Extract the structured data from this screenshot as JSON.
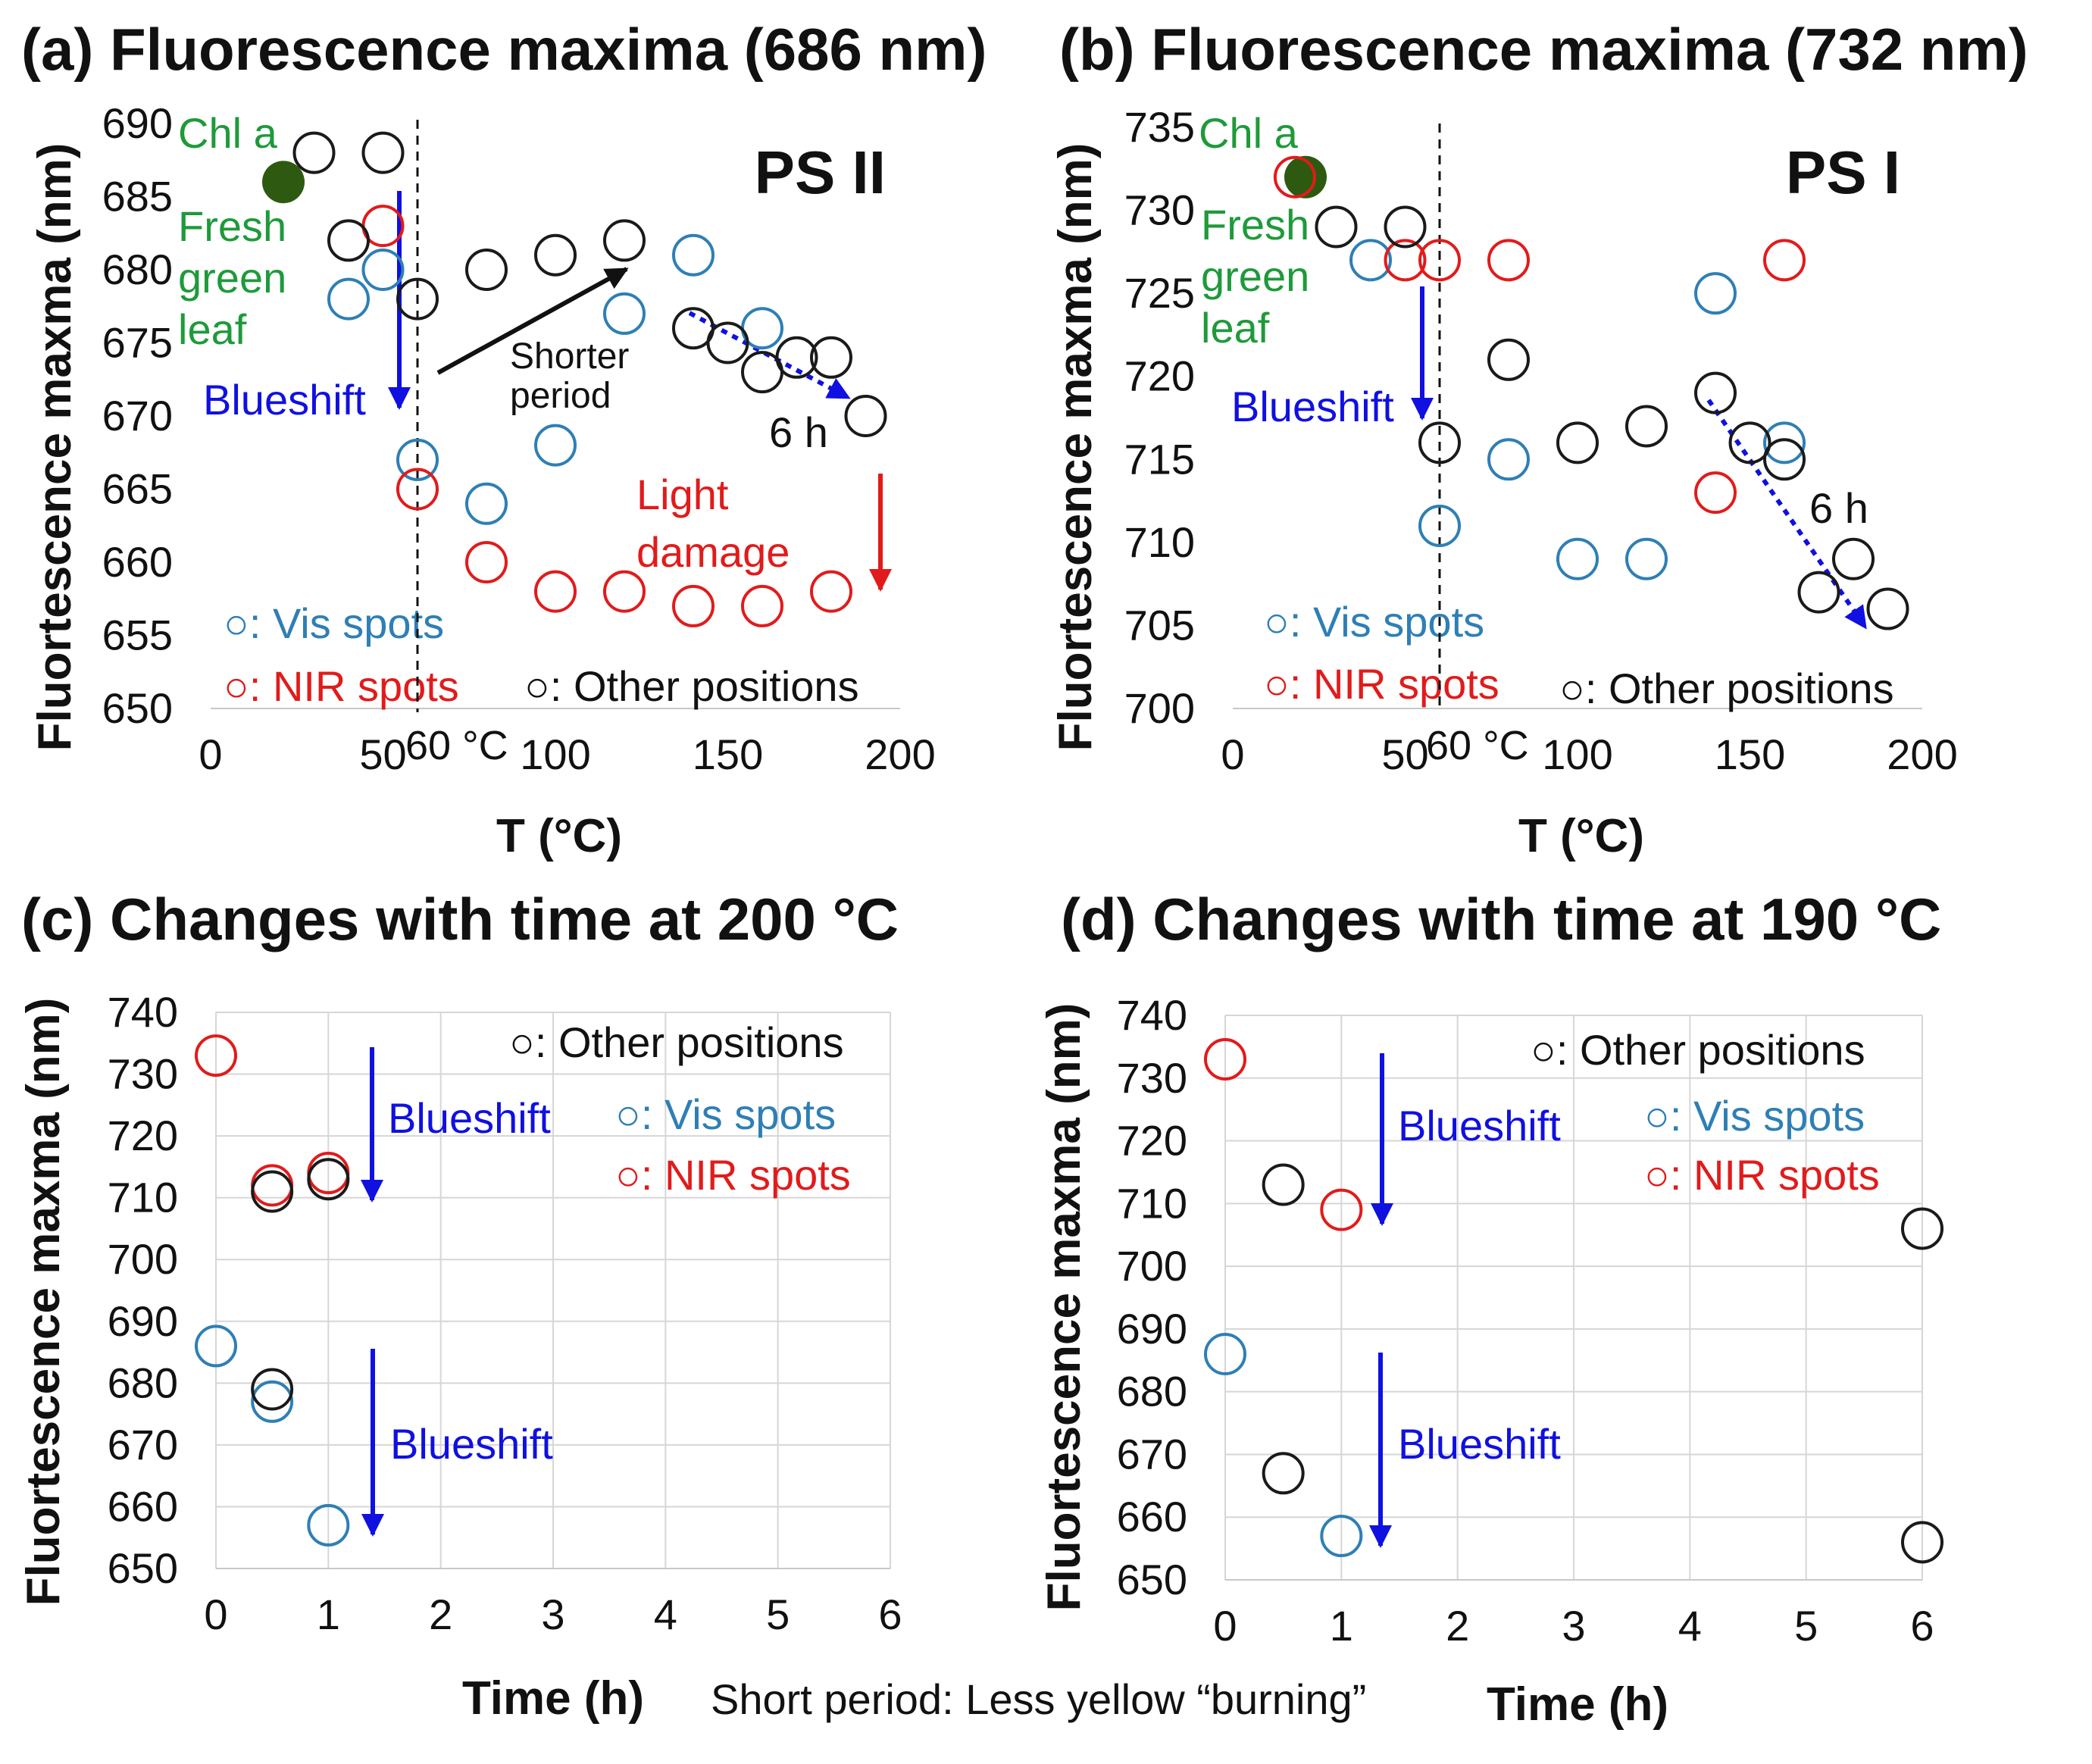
{
  "caption": "Short period: Less yellow “burning”",
  "colors": {
    "vis": "#2e7fb5",
    "nir": "#e11b1b",
    "other": "#1a1a1a",
    "blue": "#1010e0",
    "green": "#1e9a3a",
    "chl": "#2d5a10",
    "grid": "#d6d6d6"
  },
  "chart_data": [
    {
      "id": "a",
      "type": "scatter",
      "title": "(a) Fluorescence maxima (686 nm)",
      "xlabel": "T (°C)",
      "ylabel": "Fluortescence maxma (nm)",
      "xlim": [
        0,
        200
      ],
      "ylim": [
        650,
        690
      ],
      "xticks": [
        0,
        50,
        100,
        150,
        200
      ],
      "yticks": [
        650,
        655,
        660,
        665,
        670,
        675,
        680,
        685,
        690
      ],
      "grid": false,
      "panel_label": "PS II",
      "chl_a": {
        "x": 20,
        "y": 686,
        "label": "Chl a"
      },
      "fresh_leaf_label": [
        "Fresh",
        "green",
        "leaf"
      ],
      "vline": {
        "x": 60,
        "label": "60 °C"
      },
      "series": [
        {
          "name": "Vis spots",
          "key": "vis",
          "points": [
            [
              40,
              678
            ],
            [
              50,
              680
            ],
            [
              60,
              667
            ],
            [
              80,
              664
            ],
            [
              100,
              668
            ],
            [
              120,
              677
            ],
            [
              140,
              681
            ],
            [
              160,
              676
            ]
          ]
        },
        {
          "name": "NIR spots",
          "key": "nir",
          "points": [
            [
              50,
              683
            ],
            [
              60,
              665
            ],
            [
              80,
              660
            ],
            [
              100,
              658
            ],
            [
              120,
              658
            ],
            [
              140,
              657
            ],
            [
              160,
              657
            ],
            [
              180,
              658
            ]
          ]
        },
        {
          "name": "Other positions",
          "key": "other",
          "points": [
            [
              30,
              688
            ],
            [
              40,
              682
            ],
            [
              50,
              688
            ],
            [
              60,
              678
            ],
            [
              80,
              680
            ],
            [
              100,
              681
            ],
            [
              120,
              682
            ],
            [
              140,
              676
            ],
            [
              150,
              675
            ],
            [
              160,
              673
            ],
            [
              170,
              674
            ],
            [
              180,
              674
            ],
            [
              190,
              670
            ]
          ]
        }
      ],
      "annotations": {
        "blueshift": "Blueshift",
        "shorter_period": [
          "Shorter",
          "period"
        ],
        "six_h": "6 h",
        "light_damage": [
          "Light",
          "damage"
        ]
      },
      "legend": {
        "vis": "○: Vis spots",
        "nir": "○: NIR spots",
        "other": "○: Other positions"
      }
    },
    {
      "id": "b",
      "type": "scatter",
      "title": "(b) Fluorescence maxima (732 nm)",
      "xlabel": "T (°C)",
      "ylabel": "Fluortescence maxma (nm)",
      "xlim": [
        0,
        200
      ],
      "ylim": [
        700,
        735
      ],
      "xticks": [
        0,
        50,
        100,
        150,
        200
      ],
      "yticks": [
        700,
        705,
        710,
        715,
        720,
        725,
        730,
        735
      ],
      "grid": false,
      "panel_label": "PS I",
      "chl_a": {
        "x": 20,
        "y": 732,
        "label": "Chl a"
      },
      "fresh_leaf_label": [
        "Fresh",
        "green",
        "leaf"
      ],
      "vline": {
        "x": 60,
        "label": "60 °C"
      },
      "series": [
        {
          "name": "Vis spots",
          "key": "vis",
          "points": [
            [
              40,
              727
            ],
            [
              60,
              711
            ],
            [
              80,
              715
            ],
            [
              100,
              709
            ],
            [
              120,
              709
            ],
            [
              140,
              725
            ],
            [
              160,
              716
            ]
          ]
        },
        {
          "name": "NIR spots",
          "key": "nir",
          "points": [
            [
              18,
              732
            ],
            [
              50,
              727
            ],
            [
              60,
              727
            ],
            [
              80,
              727
            ],
            [
              140,
              713
            ],
            [
              160,
              727
            ]
          ]
        },
        {
          "name": "Other positions",
          "key": "other",
          "points": [
            [
              30,
              729
            ],
            [
              50,
              729
            ],
            [
              60,
              716
            ],
            [
              80,
              721
            ],
            [
              100,
              716
            ],
            [
              120,
              717
            ],
            [
              140,
              719
            ],
            [
              150,
              716
            ],
            [
              160,
              715
            ],
            [
              170,
              707
            ],
            [
              180,
              709
            ],
            [
              190,
              706
            ]
          ]
        }
      ],
      "annotations": {
        "blueshift": "Blueshift",
        "six_h": "6 h"
      },
      "legend": {
        "vis": "○: Vis spots",
        "nir": "○: NIR spots",
        "other": "○: Other positions"
      }
    },
    {
      "id": "c",
      "type": "scatter",
      "title": "(c) Changes with time at 200 °C",
      "xlabel": "Time (h)",
      "ylabel": "Fluortescence maxma (nm)",
      "xlim": [
        0,
        6
      ],
      "ylim": [
        650,
        740
      ],
      "xticks": [
        0,
        1,
        2,
        3,
        4,
        5,
        6
      ],
      "yticks": [
        650,
        660,
        670,
        680,
        690,
        700,
        710,
        720,
        730,
        740
      ],
      "grid": true,
      "series": [
        {
          "name": "Vis spots",
          "key": "vis",
          "points": [
            [
              0,
              686
            ],
            [
              0.5,
              677
            ],
            [
              1,
              657
            ]
          ]
        },
        {
          "name": "NIR spots",
          "key": "nir",
          "points": [
            [
              0,
              733
            ],
            [
              0.5,
              712
            ],
            [
              1,
              714
            ]
          ]
        },
        {
          "name": "Other positions",
          "key": "other",
          "points": [
            [
              0.5,
              711
            ],
            [
              0.5,
              679
            ],
            [
              1,
              713
            ]
          ]
        }
      ],
      "annotations": {
        "blueshift_top": "Blueshift",
        "blueshift_bottom": "Blueshift"
      },
      "legend": {
        "other": "○: Other positions",
        "vis": "○: Vis spots",
        "nir": "○: NIR spots"
      }
    },
    {
      "id": "d",
      "type": "scatter",
      "title": "(d) Changes with time at 190 °C",
      "xlabel": "Time (h)",
      "ylabel": "Fluortescence maxma (nm)",
      "xlim": [
        0,
        6
      ],
      "ylim": [
        650,
        740
      ],
      "xticks": [
        0,
        1,
        2,
        3,
        4,
        5,
        6
      ],
      "yticks": [
        650,
        660,
        670,
        680,
        690,
        700,
        710,
        720,
        730,
        740
      ],
      "grid": true,
      "series": [
        {
          "name": "Vis spots",
          "key": "vis",
          "points": [
            [
              0,
              686
            ],
            [
              1,
              657
            ]
          ]
        },
        {
          "name": "NIR spots",
          "key": "nir",
          "points": [
            [
              0,
              733
            ],
            [
              1,
              709
            ]
          ]
        },
        {
          "name": "Other positions",
          "key": "other",
          "points": [
            [
              0.5,
              713
            ],
            [
              0.5,
              667
            ],
            [
              6,
              706
            ],
            [
              6,
              656
            ]
          ]
        }
      ],
      "annotations": {
        "blueshift_top": "Blueshift",
        "blueshift_bottom": "Blueshift"
      },
      "legend": {
        "other": "○: Other positions",
        "vis": "○: Vis spots",
        "nir": "○: NIR spots"
      }
    }
  ]
}
